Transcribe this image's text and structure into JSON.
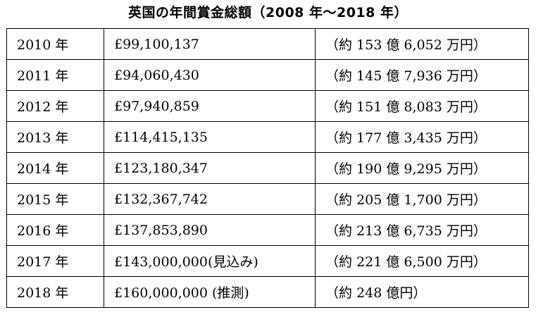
{
  "title": "英国の年間賞金総額（2008 年～2018 年）",
  "rows": [
    {
      "year": "2010 年",
      "gbp": "£99,100,137",
      "jpy": "（約 153 億 6,052 万円）"
    },
    {
      "year": "2011 年",
      "gbp": "£94,060,430",
      "jpy": "（約 145 億 7,936 万円）"
    },
    {
      "year": "2012 年",
      "gbp": "£97,940,859",
      "jpy": "（約 151 億 8,083 万円）"
    },
    {
      "year": "2013 年",
      "gbp": "£114,415,135",
      "jpy": "（約 177 億 3,435 万円）"
    },
    {
      "year": "2014 年",
      "gbp": "£123,180,347",
      "jpy": "（約 190 億 9,295 万円）"
    },
    {
      "year": "2015 年",
      "gbp": "£132,367,742",
      "jpy": "（約 205 億 1,700 万円）"
    },
    {
      "year": "2016 年",
      "gbp": "£137,853,890",
      "jpy": "（約 213 億 6,735 万円）"
    },
    {
      "year": "2017 年",
      "gbp": "£143,000,000(見込み)",
      "jpy": "（約 221 億 6,500 万円）"
    },
    {
      "year": "2018 年",
      "gbp": "£160,000,000 (推測)",
      "jpy": "（約 248 億円）"
    }
  ]
}
